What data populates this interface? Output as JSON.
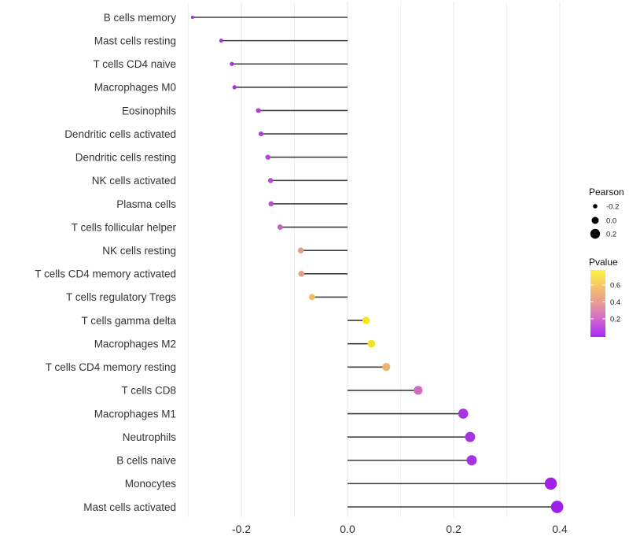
{
  "chart_data": {
    "type": "lollipop",
    "title": "",
    "xlabel": "",
    "ylabel": "",
    "x_axis": {
      "tick_values": [
        -0.2,
        0.0,
        0.2,
        0.4
      ],
      "tick_labels": [
        "-0.2",
        "0.0",
        "0.2",
        "0.4"
      ],
      "minor_tick_values": [
        -0.3,
        -0.1,
        0.1,
        0.3
      ],
      "xlim": [
        -0.311,
        0.437
      ],
      "grid": true
    },
    "baseline_value": 0.0,
    "rows": [
      {
        "label": "B cells memory",
        "pearson": -0.292,
        "pvalue_estimated": 0.04,
        "dot_color": "#9a2cdf"
      },
      {
        "label": "Mast cells resting",
        "pearson": -0.238,
        "pvalue_estimated": 0.07,
        "dot_color": "#a134dc"
      },
      {
        "label": "T cells CD4 naive",
        "pearson": -0.218,
        "pvalue_estimated": 0.09,
        "dot_color": "#a537da"
      },
      {
        "label": "Macrophages M0",
        "pearson": -0.213,
        "pvalue_estimated": 0.09,
        "dot_color": "#a637d9"
      },
      {
        "label": "Eosinophils",
        "pearson": -0.168,
        "pvalue_estimated": 0.12,
        "dot_color": "#ac40d3"
      },
      {
        "label": "Dendritic cells activated",
        "pearson": -0.163,
        "pvalue_estimated": 0.13,
        "dot_color": "#ae43d1"
      },
      {
        "label": "Dendritic cells resting",
        "pearson": -0.15,
        "pvalue_estimated": 0.15,
        "dot_color": "#b34bcd"
      },
      {
        "label": "NK cells activated",
        "pearson": -0.145,
        "pvalue_estimated": 0.16,
        "dot_color": "#b54ecb"
      },
      {
        "label": "Plasma cells",
        "pearson": -0.144,
        "pvalue_estimated": 0.17,
        "dot_color": "#b954c8"
      },
      {
        "label": "T cells follicular helper",
        "pearson": -0.127,
        "pvalue_estimated": 0.21,
        "dot_color": "#c263c0"
      },
      {
        "label": "NK cells resting",
        "pearson": -0.088,
        "pvalue_estimated": 0.47,
        "dot_color": "#e89c82"
      },
      {
        "label": "T cells CD4 memory activated",
        "pearson": -0.087,
        "pvalue_estimated": 0.47,
        "dot_color": "#e89c82"
      },
      {
        "label": "T cells regulatory  Tregs",
        "pearson": -0.067,
        "pvalue_estimated": 0.56,
        "dot_color": "#f0be68"
      },
      {
        "label": "T cells gamma delta",
        "pearson": 0.035,
        "pvalue_estimated": 0.7,
        "dot_color": "#f2e822"
      },
      {
        "label": "Macrophages M2",
        "pearson": 0.045,
        "pvalue_estimated": 0.68,
        "dot_color": "#f0e326"
      },
      {
        "label": "T cells CD4 memory resting",
        "pearson": 0.073,
        "pvalue_estimated": 0.53,
        "dot_color": "#eeb36e"
      },
      {
        "label": "T cells CD8",
        "pearson": 0.133,
        "pvalue_estimated": 0.28,
        "dot_color": "#d26cc0"
      },
      {
        "label": "Macrophages M1",
        "pearson": 0.218,
        "pvalue_estimated": 0.06,
        "dot_color": "#a934e2"
      },
      {
        "label": "Neutrophils",
        "pearson": 0.231,
        "pvalue_estimated": 0.06,
        "dot_color": "#a833e1"
      },
      {
        "label": "B cells naive",
        "pearson": 0.234,
        "pvalue_estimated": 0.06,
        "dot_color": "#a732e1"
      },
      {
        "label": "Monocytes",
        "pearson": 0.383,
        "pvalue_estimated": 0.02,
        "dot_color": "#a122e9"
      },
      {
        "label": "Mast cells activated",
        "pearson": 0.395,
        "pvalue_estimated": 0.02,
        "dot_color": "#a01fe8"
      }
    ],
    "legend_pearson": {
      "title": "Pearson",
      "dot_color": "#000000",
      "items": [
        {
          "label": "-0.2",
          "value": -0.2
        },
        {
          "label": "0.0",
          "value": 0.0
        },
        {
          "label": "0.2",
          "value": 0.2
        }
      ]
    },
    "legend_pvalue": {
      "title": "Pvalue",
      "tick_labels": [
        "0.6",
        "0.4",
        "0.2"
      ],
      "gradient_top_to_bottom": [
        "#fcf440",
        "#f8d45c",
        "#f2b276",
        "#e79a97",
        "#d878be",
        "#c44fe3",
        "#ad28f4"
      ]
    },
    "style_colors": {
      "stem": "#3d3d3d",
      "grid_major": "#e4e4e4",
      "grid_minor": "#f0f0f0",
      "axis_text": "#333333"
    }
  }
}
